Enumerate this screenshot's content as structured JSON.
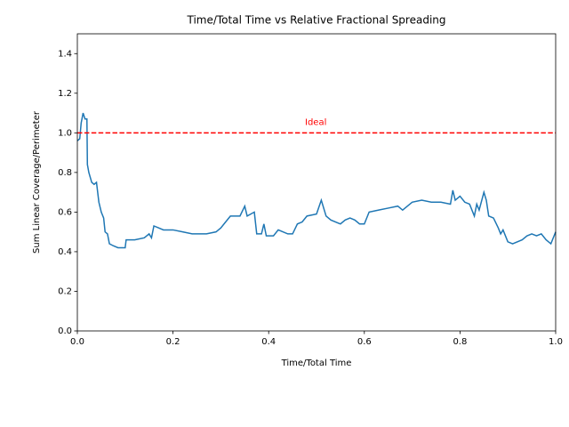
{
  "chart_data": {
    "type": "line",
    "title": "Time/Total Time vs Relative Fractional Spreading",
    "xlabel": "Time/Total Time",
    "ylabel": "Sum Linear Coverage/Perimeter",
    "x": [
      0.0,
      0.005,
      0.008,
      0.012,
      0.016,
      0.02,
      0.021,
      0.024,
      0.03,
      0.035,
      0.04,
      0.045,
      0.05,
      0.055,
      0.058,
      0.063,
      0.067,
      0.075,
      0.085,
      0.1,
      0.102,
      0.12,
      0.14,
      0.15,
      0.155,
      0.16,
      0.17,
      0.18,
      0.2,
      0.22,
      0.24,
      0.27,
      0.29,
      0.3,
      0.31,
      0.32,
      0.34,
      0.35,
      0.355,
      0.37,
      0.375,
      0.385,
      0.39,
      0.395,
      0.41,
      0.42,
      0.44,
      0.45,
      0.46,
      0.47,
      0.48,
      0.5,
      0.51,
      0.52,
      0.53,
      0.55,
      0.56,
      0.57,
      0.58,
      0.59,
      0.6,
      0.61,
      0.63,
      0.65,
      0.67,
      0.68,
      0.7,
      0.72,
      0.74,
      0.76,
      0.78,
      0.785,
      0.79,
      0.8,
      0.81,
      0.82,
      0.83,
      0.835,
      0.84,
      0.85,
      0.855,
      0.86,
      0.87,
      0.88,
      0.885,
      0.89,
      0.9,
      0.91,
      0.93,
      0.94,
      0.95,
      0.96,
      0.97,
      0.98,
      0.99,
      1.0
    ],
    "values": [
      0.96,
      0.97,
      1.05,
      1.1,
      1.07,
      1.07,
      0.84,
      0.8,
      0.75,
      0.74,
      0.75,
      0.65,
      0.6,
      0.57,
      0.5,
      0.49,
      0.44,
      0.43,
      0.42,
      0.42,
      0.46,
      0.46,
      0.47,
      0.49,
      0.47,
      0.53,
      0.52,
      0.51,
      0.51,
      0.5,
      0.49,
      0.49,
      0.5,
      0.52,
      0.55,
      0.58,
      0.58,
      0.63,
      0.58,
      0.6,
      0.49,
      0.49,
      0.54,
      0.48,
      0.48,
      0.51,
      0.49,
      0.49,
      0.54,
      0.55,
      0.58,
      0.59,
      0.66,
      0.58,
      0.56,
      0.54,
      0.56,
      0.57,
      0.56,
      0.54,
      0.54,
      0.6,
      0.61,
      0.62,
      0.63,
      0.61,
      0.65,
      0.66,
      0.65,
      0.65,
      0.64,
      0.71,
      0.66,
      0.68,
      0.65,
      0.64,
      0.58,
      0.64,
      0.61,
      0.7,
      0.66,
      0.58,
      0.57,
      0.52,
      0.49,
      0.51,
      0.45,
      0.44,
      0.46,
      0.48,
      0.49,
      0.48,
      0.49,
      0.46,
      0.44,
      0.5
    ],
    "color": "#1f77b4",
    "reference_line": {
      "value": 1.0,
      "color": "red",
      "style": "dashed",
      "label": "Ideal"
    },
    "xlim": [
      0,
      1
    ],
    "ylim": [
      0,
      1.5
    ],
    "xticks": [
      {
        "value": 0,
        "label": "0.0"
      },
      0.2,
      0.4,
      0.6,
      0.8,
      {
        "value": 1,
        "label": "1.0"
      }
    ],
    "yticks": [
      {
        "value": 0,
        "label": "0.0"
      },
      0.2,
      0.4,
      0.6,
      0.8,
      {
        "value": 1,
        "label": "1.0"
      },
      1.2,
      1.4
    ]
  }
}
